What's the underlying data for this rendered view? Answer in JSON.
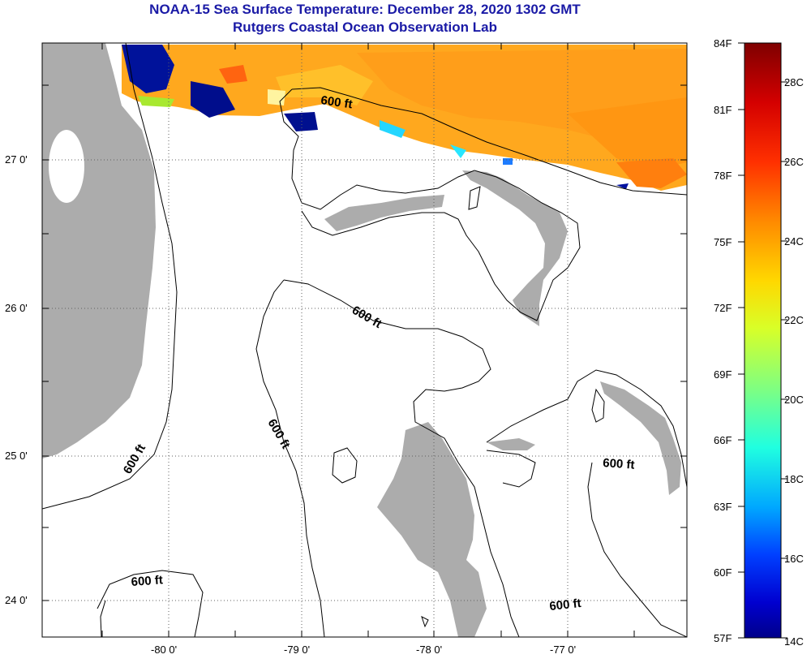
{
  "title": "NOAA-15 Sea Surface Temperature:  December 28, 2020 1302 GMT",
  "subtitle": "Rutgers Coastal Ocean Observation Lab",
  "map": {
    "lon_ticks": [
      "-80 0'",
      "-79 0'",
      "-78 0'",
      "-77 0'"
    ],
    "lat_ticks": [
      "27 0'",
      "26 0'",
      "25 0'",
      "24 0'"
    ],
    "contour_label": "600 ft",
    "land_color": "#acacac",
    "no_data_color": "#ffffff"
  },
  "colorbar": {
    "fahrenheit_labels": [
      "84F",
      "81F",
      "78F",
      "75F",
      "72F",
      "69F",
      "66F",
      "63F",
      "60F",
      "57F"
    ],
    "celsius_labels": [
      "28C",
      "26C",
      "24C",
      "22C",
      "20C",
      "18C",
      "16C",
      "14C"
    ],
    "colors_top_to_bottom": [
      "#7f0000",
      "#d40000",
      "#ff3000",
      "#ff8a00",
      "#ffd800",
      "#d8ff28",
      "#80ff80",
      "#20ffe0",
      "#00a8ff",
      "#0040ff",
      "#0000d0",
      "#00008a"
    ]
  }
}
